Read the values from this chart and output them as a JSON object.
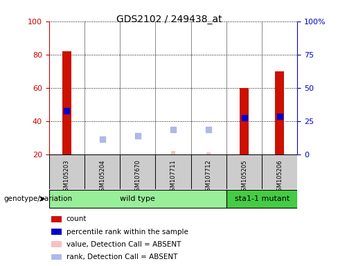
{
  "title": "GDS2102 / 249438_at",
  "samples": [
    "GSM105203",
    "GSM105204",
    "GSM107670",
    "GSM107711",
    "GSM107712",
    "GSM105205",
    "GSM105206"
  ],
  "groups": {
    "wild type": [
      0,
      1,
      2,
      3,
      4
    ],
    "sta1-1 mutant": [
      5,
      6
    ]
  },
  "count_values": [
    82,
    null,
    null,
    null,
    null,
    60,
    70
  ],
  "percentile_rank_left": [
    46,
    null,
    null,
    null,
    null,
    42,
    43
  ],
  "absent_value": [
    null,
    null,
    20,
    22,
    21,
    null,
    null
  ],
  "absent_rank": [
    null,
    29,
    31,
    35,
    35,
    null,
    null
  ],
  "ylim": [
    20,
    100
  ],
  "yticks_left": [
    20,
    40,
    60,
    80,
    100
  ],
  "yticks_right_labels": [
    "0",
    "25",
    "50",
    "75",
    "100%"
  ],
  "yticks_right_pos": [
    20,
    40,
    60,
    80,
    100
  ],
  "left_axis_color": "#cc0000",
  "right_axis_color": "#0000cc",
  "bar_color_count": "#cc1100",
  "bar_color_absent_value": "#f8c0c0",
  "dot_color_rank": "#0000cc",
  "dot_color_absent_rank": "#b0b8e8",
  "sample_box_color": "#cccccc",
  "group_wt_color": "#99ee99",
  "group_mut_color": "#44cc44",
  "legend_items": [
    {
      "label": "count",
      "color": "#cc1100"
    },
    {
      "label": "percentile rank within the sample",
      "color": "#0000cc"
    },
    {
      "label": "value, Detection Call = ABSENT",
      "color": "#f8c0c0"
    },
    {
      "label": "rank, Detection Call = ABSENT",
      "color": "#b0b8e8"
    }
  ],
  "bar_width": 0.25,
  "dot_size": 35,
  "background_color": "#ffffff"
}
